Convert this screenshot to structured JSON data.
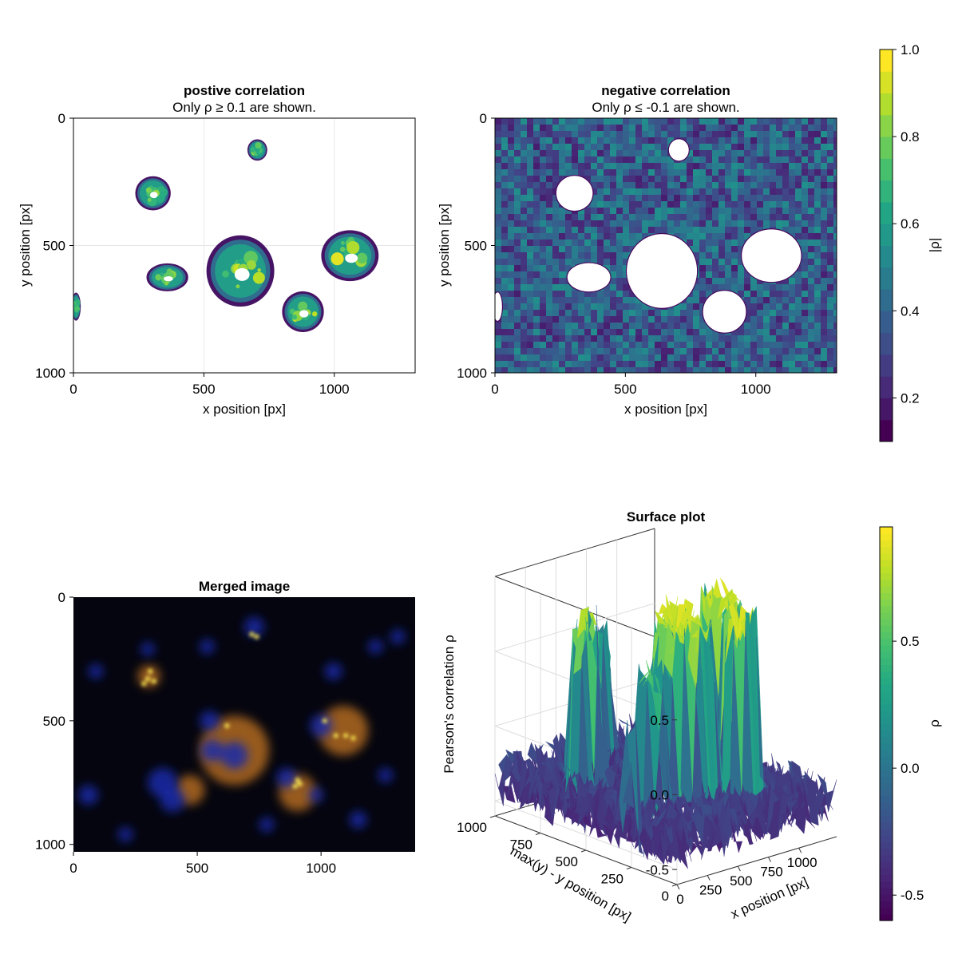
{
  "chart_data": [
    {
      "type": "heatmap",
      "title": "postive correlation",
      "subtitle": "Only ρ ≥ 0.1 are shown.",
      "xlabel": "x position [px]",
      "ylabel": "y position [px]",
      "xticks": [
        0,
        500,
        1000
      ],
      "yticks": [
        0,
        500,
        1000
      ],
      "xlim": [
        0,
        1310
      ],
      "ylim": [
        0,
        1000
      ],
      "y_reversed": true,
      "grid": true,
      "blobs": [
        {
          "cx": 305,
          "cy": 295,
          "rx": 68,
          "ry": 67,
          "peak": 0.85
        },
        {
          "cx": 705,
          "cy": 125,
          "rx": 38,
          "ry": 42,
          "peak": 0.55
        },
        {
          "cx": 360,
          "cy": 625,
          "rx": 80,
          "ry": 55,
          "peak": 0.6
        },
        {
          "cx": 640,
          "cy": 600,
          "rx": 130,
          "ry": 140,
          "peak": 0.9
        },
        {
          "cx": 880,
          "cy": 760,
          "rx": 80,
          "ry": 80,
          "peak": 0.95
        },
        {
          "cx": 1060,
          "cy": 540,
          "rx": 110,
          "ry": 100,
          "peak": 0.9
        },
        {
          "cx": 10,
          "cy": 740,
          "rx": 18,
          "ry": 55,
          "peak": 0.4
        }
      ]
    },
    {
      "type": "heatmap",
      "title": "negative correlation",
      "subtitle": "Only ρ ≤ -0.1 are shown.",
      "xlabel": "x position [px]",
      "ylabel": "y position [px]",
      "xticks": [
        0,
        500,
        1000
      ],
      "yticks": [
        0,
        500,
        1000
      ],
      "xlim": [
        0,
        1310
      ],
      "ylim": [
        0,
        1000
      ],
      "y_reversed": true,
      "grid": true,
      "value_range": [
        -0.6,
        -0.1
      ]
    },
    {
      "type": "colorbar",
      "label": "|ρ|",
      "ticks": [
        "0.2",
        "0.4",
        "0.6",
        "0.8",
        "1.0"
      ],
      "tick_values": [
        0.2,
        0.4,
        0.6,
        0.8,
        1.0
      ],
      "range": [
        0.1,
        1.0
      ],
      "colormap": "viridis",
      "levels": 18
    },
    {
      "type": "image",
      "title": "Merged image",
      "xticks": [
        0,
        500,
        1000
      ],
      "yticks": [
        0,
        500,
        1000
      ],
      "xlim": [
        0,
        1380
      ],
      "ylim": [
        0,
        1030
      ],
      "y_reversed": true,
      "background": "#05050f",
      "cells_orange": [
        {
          "cx": 305,
          "cy": 320,
          "r": 45
        },
        {
          "cx": 650,
          "cy": 620,
          "r": 140
        },
        {
          "cx": 905,
          "cy": 790,
          "r": 75
        },
        {
          "cx": 1090,
          "cy": 540,
          "r": 100
        },
        {
          "cx": 470,
          "cy": 780,
          "r": 60
        }
      ],
      "nuclei_blue": [
        {
          "cx": 550,
          "cy": 500,
          "r": 40
        },
        {
          "cx": 300,
          "cy": 210,
          "r": 28
        },
        {
          "cx": 540,
          "cy": 200,
          "r": 30
        },
        {
          "cx": 730,
          "cy": 120,
          "r": 40
        },
        {
          "cx": 1050,
          "cy": 300,
          "r": 35
        },
        {
          "cx": 780,
          "cy": 920,
          "r": 30
        },
        {
          "cx": 1150,
          "cy": 900,
          "r": 35
        },
        {
          "cx": 650,
          "cy": 640,
          "r": 55
        },
        {
          "cx": 560,
          "cy": 620,
          "r": 45
        },
        {
          "cx": 360,
          "cy": 750,
          "r": 60
        },
        {
          "cx": 400,
          "cy": 820,
          "r": 50
        },
        {
          "cx": 860,
          "cy": 730,
          "r": 40
        },
        {
          "cx": 1000,
          "cy": 520,
          "r": 45
        },
        {
          "cx": 1260,
          "cy": 720,
          "r": 30
        },
        {
          "cx": 980,
          "cy": 800,
          "r": 30
        },
        {
          "cx": 1310,
          "cy": 160,
          "r": 30
        },
        {
          "cx": 1220,
          "cy": 200,
          "r": 30
        },
        {
          "cx": 90,
          "cy": 300,
          "r": 30
        },
        {
          "cx": 60,
          "cy": 800,
          "r": 40
        },
        {
          "cx": 210,
          "cy": 960,
          "r": 30
        }
      ],
      "spots_yellow": [
        {
          "cx": 300,
          "cy": 330
        },
        {
          "cx": 285,
          "cy": 350
        },
        {
          "cx": 310,
          "cy": 300
        },
        {
          "cx": 325,
          "cy": 340
        },
        {
          "cx": 905,
          "cy": 740
        },
        {
          "cx": 895,
          "cy": 765
        },
        {
          "cx": 915,
          "cy": 755
        },
        {
          "cx": 1100,
          "cy": 560
        },
        {
          "cx": 1130,
          "cy": 570
        },
        {
          "cx": 1015,
          "cy": 500
        },
        {
          "cx": 1060,
          "cy": 560
        },
        {
          "cx": 720,
          "cy": 150
        },
        {
          "cx": 740,
          "cy": 160
        },
        {
          "cx": 620,
          "cy": 520
        }
      ]
    },
    {
      "type": "surface",
      "title": "Surface plot",
      "xlabel": "x position [px]",
      "ylabel": "max(y) - y position [px]",
      "zlabel": "Pearson's correlation ρ",
      "xticks": [
        0,
        250,
        500,
        750,
        1000
      ],
      "yticks": [
        0,
        250,
        500,
        750,
        1000
      ],
      "zticks": [
        -0.5,
        0.0,
        0.5
      ],
      "xtick_labels": [
        "0",
        "250",
        "500",
        "750",
        "1000"
      ],
      "ytick_labels": [
        "0",
        "250",
        "500",
        "750",
        "1000"
      ],
      "ztick_labels": [
        "-0.5",
        "0.0",
        "0.5"
      ],
      "xlim": [
        0,
        1310
      ],
      "ylim": [
        0,
        1000
      ],
      "zlim": [
        -0.6,
        1.0
      ],
      "colormap": "viridis"
    },
    {
      "type": "colorbar",
      "label": "ρ",
      "ticks": [
        "-0.5",
        "0.0",
        "0.5"
      ],
      "tick_values": [
        -0.5,
        0.0,
        0.5
      ],
      "range": [
        -0.6,
        0.95
      ],
      "colormap": "viridis",
      "levels": 0
    }
  ]
}
